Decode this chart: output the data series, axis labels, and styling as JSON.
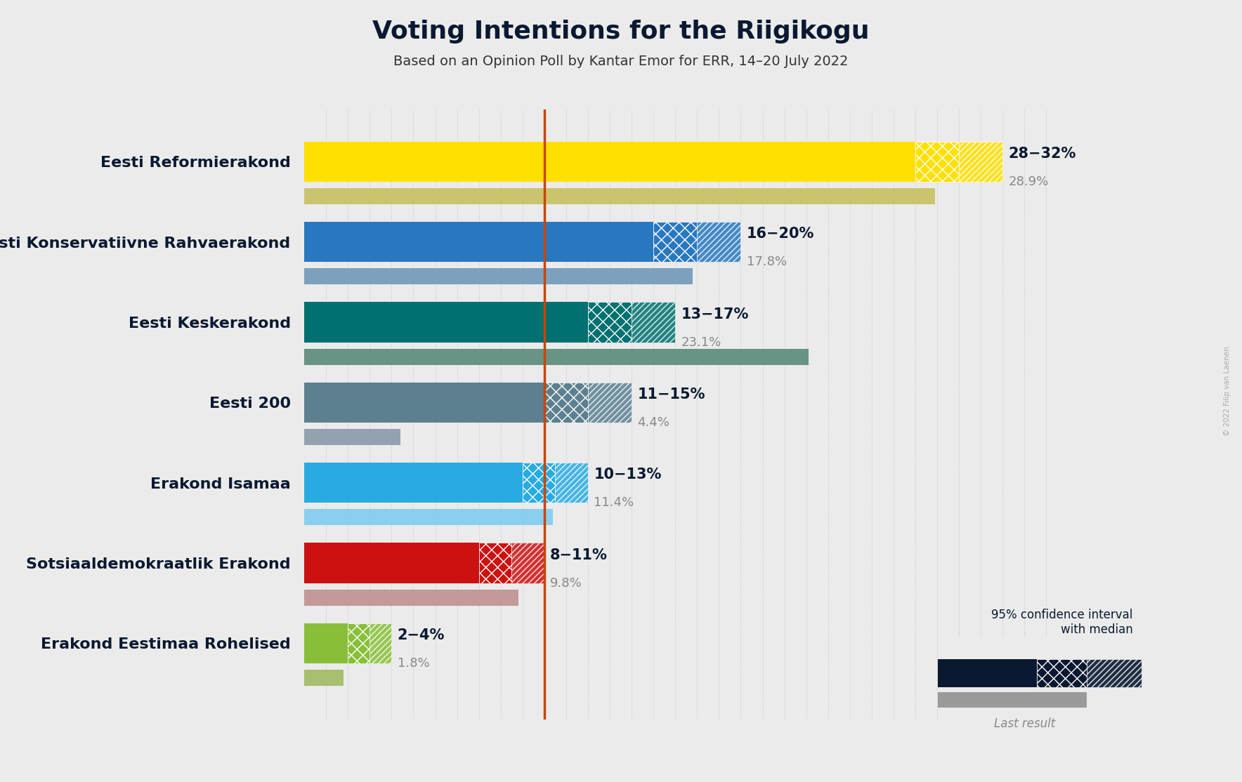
{
  "title": "Voting Intentions for the Riigikogu",
  "subtitle": "Based on an Opinion Poll by Kantar Emor for ERR, 14–20 July 2022",
  "copyright": "© 2022 Filip van Laenen",
  "parties": [
    "Eesti Reformierakond",
    "Eesti Konservatiivne Rahvaerakond",
    "Eesti Keskerakond",
    "Eesti 200",
    "Erakond Isamaa",
    "Sotsiaaldemokraatlik Erakond",
    "Erakond Eestimaa Rohelised"
  ],
  "ci_low": [
    28,
    16,
    13,
    11,
    10,
    8,
    2
  ],
  "ci_high": [
    32,
    20,
    17,
    15,
    13,
    11,
    4
  ],
  "last": [
    28.9,
    17.8,
    23.1,
    4.4,
    11.4,
    9.8,
    1.8
  ],
  "ci_labels": [
    "28−32%",
    "16−20%",
    "13−17%",
    "11−15%",
    "10−13%",
    "8−11%",
    "2−4%"
  ],
  "last_labels": [
    "28.9%",
    "17.8%",
    "23.1%",
    "4.4%",
    "11.4%",
    "9.8%",
    "1.8%"
  ],
  "bar_colors": [
    "#FFE000",
    "#2878C0",
    "#007070",
    "#5C8090",
    "#29ABE2",
    "#CC1111",
    "#88BF38"
  ],
  "last_colors": [
    "#C8C060",
    "#7099BB",
    "#5A8A7A",
    "#8A9AA8",
    "#80CCEE",
    "#C09090",
    "#A0BB60"
  ],
  "bg_color": "#EBEBEB",
  "vline_x": 11.0,
  "vline_color": "#CC4400",
  "xlim": [
    0,
    35
  ],
  "legend_ci_color": "#0A1931",
  "legend_last_color": "#9A9A9A",
  "title_fs": 26,
  "subtitle_fs": 14,
  "party_fs": 16,
  "annot_fs": 15,
  "annot_last_fs": 13
}
